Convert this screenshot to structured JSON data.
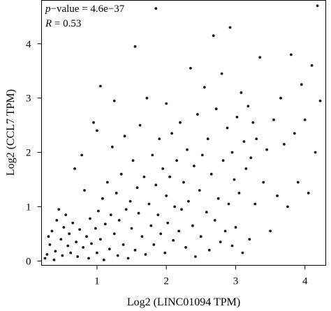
{
  "chart_data": {
    "type": "scatter",
    "title": "",
    "xlabel": "Log2 (LINC01094 TPM)",
    "ylabel": "Log2 (CCL7 TPM)",
    "xlim": [
      0.2,
      4.3
    ],
    "ylim": [
      -0.08,
      4.8
    ],
    "xticks": [
      1,
      2,
      3,
      4
    ],
    "yticks": [
      0,
      1,
      2,
      3,
      4
    ],
    "grid": false,
    "annotations": [
      {
        "italic": "p",
        "text": "−value = 4.6e−37"
      },
      {
        "italic": "R",
        "text": " = 0.53"
      }
    ],
    "series": [
      {
        "points": [
          [
            0.25,
            0.05
          ],
          [
            0.28,
            0.12
          ],
          [
            0.3,
            0.45
          ],
          [
            0.32,
            0.3
          ],
          [
            0.35,
            0.55
          ],
          [
            0.38,
            0.02
          ],
          [
            0.4,
            0.18
          ],
          [
            0.42,
            0.75
          ],
          [
            0.45,
            0.95
          ],
          [
            0.48,
            0.4
          ],
          [
            0.5,
            0.1
          ],
          [
            0.52,
            0.62
          ],
          [
            0.55,
            0.85
          ],
          [
            0.58,
            0.28
          ],
          [
            0.6,
            0.5
          ],
          [
            0.62,
            0.15
          ],
          [
            0.65,
            0.7
          ],
          [
            0.68,
            1.7
          ],
          [
            0.7,
            0.35
          ],
          [
            0.72,
            0.08
          ],
          [
            0.75,
            0.58
          ],
          [
            0.78,
            1.95
          ],
          [
            0.8,
            0.25
          ],
          [
            0.82,
            1.3
          ],
          [
            0.85,
            0.45
          ],
          [
            0.88,
            0.05
          ],
          [
            0.9,
            0.78
          ],
          [
            0.92,
            0.32
          ],
          [
            0.95,
            2.55
          ],
          [
            0.98,
            0.6
          ],
          [
            1.0,
            0.15
          ],
          [
            1.0,
            2.4
          ],
          [
            1.02,
            0.92
          ],
          [
            1.05,
            0.4
          ],
          [
            1.05,
            3.22
          ],
          [
            1.08,
            1.15
          ],
          [
            1.1,
            0.02
          ],
          [
            1.12,
            0.68
          ],
          [
            1.15,
            1.45
          ],
          [
            1.18,
            0.22
          ],
          [
            1.2,
            0.85
          ],
          [
            1.22,
            2.1
          ],
          [
            1.25,
            0.5
          ],
          [
            1.25,
            2.95
          ],
          [
            1.28,
            1.25
          ],
          [
            1.3,
            0.1
          ],
          [
            1.32,
            0.75
          ],
          [
            1.35,
            1.6
          ],
          [
            1.38,
            0.3
          ],
          [
            1.4,
            2.3
          ],
          [
            1.42,
            0.95
          ],
          [
            1.45,
            0.05
          ],
          [
            1.48,
            1.1
          ],
          [
            1.5,
            0.6
          ],
          [
            1.52,
            1.85
          ],
          [
            1.55,
            0.2
          ],
          [
            1.55,
            3.95
          ],
          [
            1.58,
            1.35
          ],
          [
            1.6,
            0.88
          ],
          [
            1.62,
            2.5
          ],
          [
            1.65,
            0.45
          ],
          [
            1.68,
            1.55
          ],
          [
            1.7,
            0.12
          ],
          [
            1.72,
            3.0
          ],
          [
            1.75,
            1.05
          ],
          [
            1.78,
            0.65
          ],
          [
            1.8,
            1.95
          ],
          [
            1.82,
            0.3
          ],
          [
            1.85,
            1.4
          ],
          [
            1.85,
            4.65
          ],
          [
            1.88,
            0.85
          ],
          [
            1.9,
            2.25
          ],
          [
            1.92,
            0.5
          ],
          [
            1.95,
            1.7
          ],
          [
            1.98,
            0.15
          ],
          [
            2.0,
            1.2
          ],
          [
            2.0,
            2.9
          ],
          [
            2.02,
            0.7
          ],
          [
            2.05,
            1.55
          ],
          [
            2.08,
            2.35
          ],
          [
            2.1,
            0.38
          ],
          [
            2.12,
            1.0
          ],
          [
            2.15,
            1.85
          ],
          [
            2.18,
            0.55
          ],
          [
            2.2,
            2.55
          ],
          [
            2.22,
            0.95
          ],
          [
            2.25,
            1.45
          ],
          [
            2.28,
            0.25
          ],
          [
            2.3,
            2.05
          ],
          [
            2.32,
            1.1
          ],
          [
            2.35,
            3.55
          ],
          [
            2.38,
            0.65
          ],
          [
            2.4,
            1.75
          ],
          [
            2.42,
            0.08
          ],
          [
            2.45,
            2.7
          ],
          [
            2.48,
            1.3
          ],
          [
            2.5,
            0.45
          ],
          [
            2.52,
            1.95
          ],
          [
            2.55,
            3.2
          ],
          [
            2.58,
            0.9
          ],
          [
            2.6,
            2.25
          ],
          [
            2.62,
            0.2
          ],
          [
            2.65,
            1.6
          ],
          [
            2.68,
            4.15
          ],
          [
            2.7,
            0.75
          ],
          [
            2.72,
            2.8
          ],
          [
            2.75,
            1.15
          ],
          [
            2.78,
            0.35
          ],
          [
            2.8,
            3.45
          ],
          [
            2.82,
            1.85
          ],
          [
            2.85,
            0.55
          ],
          [
            2.88,
            2.45
          ],
          [
            2.9,
            1.05
          ],
          [
            2.92,
            4.3
          ],
          [
            2.95,
            0.28
          ],
          [
            2.95,
            2.0
          ],
          [
            2.98,
            1.5
          ],
          [
            3.0,
            0.62
          ],
          [
            3.02,
            2.65
          ],
          [
            3.05,
            1.25
          ],
          [
            3.08,
            3.1
          ],
          [
            3.1,
            0.15
          ],
          [
            3.12,
            2.2
          ],
          [
            3.15,
            1.7
          ],
          [
            3.18,
            2.85
          ],
          [
            3.2,
            0.4
          ],
          [
            3.22,
            1.9
          ],
          [
            3.25,
            2.55
          ],
          [
            3.28,
            1.05
          ],
          [
            3.3,
            2.25
          ],
          [
            3.35,
            3.75
          ],
          [
            3.4,
            1.45
          ],
          [
            3.45,
            2.05
          ],
          [
            3.5,
            0.55
          ],
          [
            3.55,
            2.6
          ],
          [
            3.6,
            1.2
          ],
          [
            3.65,
            3.0
          ],
          [
            3.7,
            2.15
          ],
          [
            3.75,
            1.0
          ],
          [
            3.8,
            3.8
          ],
          [
            3.85,
            2.35
          ],
          [
            3.9,
            1.45
          ],
          [
            3.95,
            3.25
          ],
          [
            4.0,
            2.6
          ],
          [
            4.05,
            1.25
          ],
          [
            4.1,
            3.6
          ],
          [
            4.15,
            2.0
          ],
          [
            4.18,
            4.7
          ],
          [
            4.22,
            2.95
          ]
        ]
      }
    ]
  }
}
